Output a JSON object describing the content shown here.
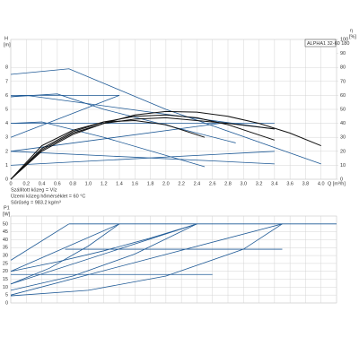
{
  "chart_data": [
    {
      "type": "line",
      "title": "ALPHA1 32-60 180",
      "y_label": "H",
      "y_unit": "[m]",
      "y2_label": "η",
      "y2_unit": "[%]",
      "x_label": "Q [m³/h]",
      "notes": [
        "Szállított közeg = Víz",
        "Üzemi közeg hőmérséklet = 60 °C",
        "Sűrűség = 983.2 kg/m³"
      ],
      "xlim": [
        0,
        4.2
      ],
      "xticks": [
        0,
        0.2,
        0.4,
        0.6,
        0.8,
        {
          "value": 1,
          "label": "1.0"
        },
        1.2,
        1.4,
        1.6,
        1.8,
        {
          "value": 2,
          "label": "2.0"
        },
        2.2,
        2.4,
        2.6,
        2.8,
        {
          "value": 3,
          "label": "3.0"
        },
        3.2,
        3.4,
        3.6,
        3.8,
        {
          "value": 4,
          "label": "4.0"
        }
      ],
      "ylim": [
        0,
        10
      ],
      "yticks": [
        0,
        1,
        2,
        3,
        4,
        5,
        6,
        7,
        8
      ],
      "y2lim": [
        0,
        100
      ],
      "y2ticks": [
        0,
        10,
        20,
        30,
        40,
        50,
        60,
        70,
        80,
        90,
        100
      ],
      "grid": true,
      "series": [
        {
          "color": "#1f5a96",
          "x": [
            0,
            0.75,
            2.0,
            4.0
          ],
          "values": [
            7.5,
            7.9,
            5.0,
            1.1
          ]
        },
        {
          "color": "#1f5a96",
          "x": [
            0,
            0.6,
            1.2,
            2.9
          ],
          "values": [
            5.9,
            6.1,
            5.0,
            2.6
          ]
        },
        {
          "color": "#1f5a96",
          "x": [
            0,
            1.4
          ],
          "values": [
            6.0,
            6.0
          ]
        },
        {
          "color": "#1f5a96",
          "x": [
            0,
            0.4,
            1.2,
            2.5
          ],
          "values": [
            4.0,
            4.1,
            3.0,
            0.9
          ]
        },
        {
          "color": "#1f5a96",
          "x": [
            0,
            3.4
          ],
          "values": [
            4.0,
            4.0
          ]
        },
        {
          "color": "#1f5a96",
          "x": [
            0,
            1.4
          ],
          "values": [
            3.0,
            6.0
          ]
        },
        {
          "color": "#1f5a96",
          "x": [
            0,
            2.7
          ],
          "values": [
            2.0,
            4.0
          ]
        },
        {
          "color": "#1f5a96",
          "x": [
            0,
            3.4
          ],
          "values": [
            1.0,
            2.0
          ]
        },
        {
          "color": "#1f5a96",
          "x": [
            0,
            3.4
          ],
          "values": [
            2.0,
            1.1
          ]
        },
        {
          "color": "#1f5a96",
          "x": [
            0,
            0.2,
            3.4
          ],
          "values": [
            5.9,
            6.0,
            3.6
          ]
        },
        {
          "color": "#111111",
          "axis": "y2",
          "x": [
            0,
            0.4,
            0.8,
            1.2,
            1.6,
            2.0,
            2.4,
            2.8,
            3.2,
            3.6,
            4.0
          ],
          "values": [
            0,
            20,
            32,
            40,
            46,
            48.5,
            48,
            45,
            40,
            33,
            24
          ]
        },
        {
          "color": "#111111",
          "axis": "y2",
          "x": [
            0,
            0.4,
            0.8,
            1.2,
            1.6,
            2.0,
            2.4,
            2.8,
            3.4
          ],
          "values": [
            0,
            22,
            34,
            41,
            45,
            46,
            44,
            39,
            28
          ]
        },
        {
          "color": "#111111",
          "axis": "y2",
          "x": [
            0,
            0.4,
            0.8,
            1.2,
            1.6,
            2.0,
            2.5
          ],
          "values": [
            0,
            24,
            35,
            41,
            42,
            39,
            30
          ]
        },
        {
          "color": "#111111",
          "axis": "y2",
          "x": [
            0,
            0.4,
            0.8,
            1.2,
            1.6,
            2.0,
            2.4,
            2.8,
            3.4
          ],
          "values": [
            0,
            21,
            33,
            40,
            43,
            44,
            42,
            40,
            36
          ]
        }
      ]
    },
    {
      "type": "line",
      "y_label": "P1",
      "y_unit": "[W]",
      "xlim": [
        0,
        4.2
      ],
      "ylim": [
        0,
        55
      ],
      "yticks": [
        0,
        5,
        10,
        15,
        20,
        25,
        30,
        35,
        40,
        45,
        50
      ],
      "grid": true,
      "series": [
        {
          "color": "#1f5a96",
          "x": [
            0.75,
            4.2
          ],
          "values": [
            50,
            50
          ]
        },
        {
          "color": "#1f5a96",
          "x": [
            0,
            0.75
          ],
          "values": [
            27,
            50
          ]
        },
        {
          "color": "#1f5a96",
          "x": [
            0,
            1.4
          ],
          "values": [
            20,
            50
          ]
        },
        {
          "color": "#1f5a96",
          "x": [
            0,
            2.4
          ],
          "values": [
            12,
            50
          ]
        },
        {
          "color": "#1f5a96",
          "x": [
            0,
            3.5
          ],
          "values": [
            5,
            50
          ]
        },
        {
          "color": "#1f5a96",
          "x": [
            0.7,
            3.5
          ],
          "values": [
            34,
            34
          ]
        },
        {
          "color": "#1f5a96",
          "x": [
            0,
            2.6
          ],
          "values": [
            18,
            18
          ]
        },
        {
          "color": "#1f5a96",
          "x": [
            0,
            0.5,
            1.0,
            1.4
          ],
          "values": [
            12,
            22,
            36,
            50
          ]
        },
        {
          "color": "#1f5a96",
          "x": [
            0,
            0.8,
            1.6,
            2.4
          ],
          "values": [
            8,
            17,
            31,
            50
          ]
        },
        {
          "color": "#1f5a96",
          "x": [
            0,
            1.0,
            2.0,
            3.0,
            3.5
          ],
          "values": [
            4.5,
            8,
            17,
            34,
            50
          ]
        },
        {
          "color": "#1f5a96",
          "x": [
            0,
            0.6,
            1.2,
            1.8,
            2.4
          ],
          "values": [
            20,
            26,
            33,
            41,
            50
          ]
        }
      ]
    }
  ]
}
